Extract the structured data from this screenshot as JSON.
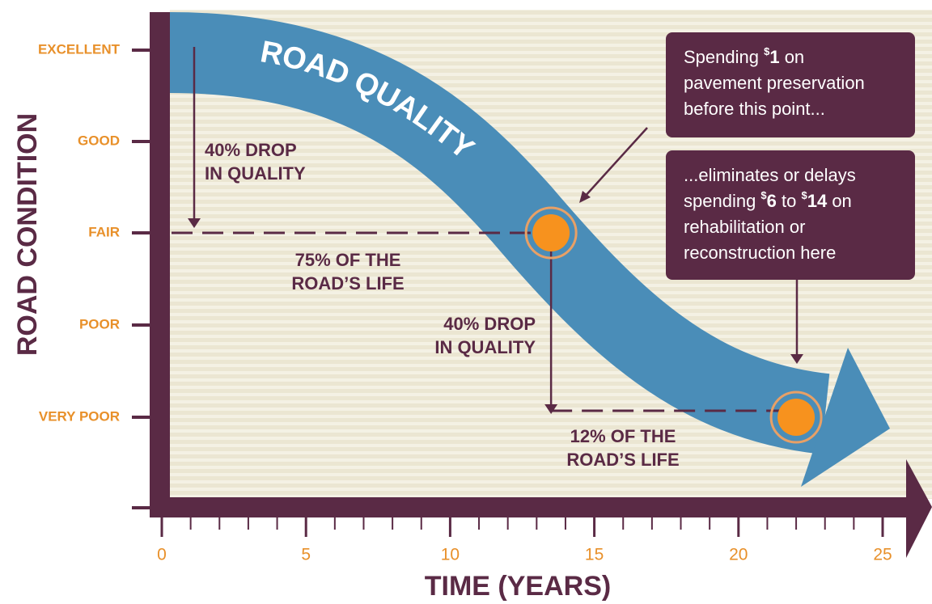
{
  "chart_data": {
    "type": "line",
    "title": "ROAD QUALITY",
    "xlabel": "TIME (YEARS)",
    "ylabel": "ROAD CONDITION",
    "categories": [
      "EXCELLENT",
      "GOOD",
      "FAIR",
      "POOR",
      "VERY POOR"
    ],
    "xlim": [
      0,
      25
    ],
    "xticks": [
      0,
      5,
      10,
      15,
      20,
      25
    ],
    "xminorticks": [
      1,
      2,
      3,
      4,
      6,
      7,
      8,
      9,
      11,
      12,
      13,
      14,
      16,
      17,
      18,
      19,
      21,
      22,
      23,
      24
    ],
    "series": [
      {
        "color": "#f7921e",
        "x": [
          13.5,
          22
        ],
        "values": [
          "FAIR",
          "VERY POOR"
        ]
      }
    ],
    "band_color": "#4a8db8",
    "annotations": [
      {
        "lines": [
          "40% DROP",
          "IN QUALITY"
        ]
      },
      {
        "lines": [
          "75% OF THE",
          "ROAD’S LIFE"
        ]
      },
      {
        "lines": [
          "40% DROP",
          "IN QUALITY"
        ]
      },
      {
        "lines": [
          "12% OF THE",
          "ROAD’S LIFE"
        ]
      }
    ],
    "callouts": [
      {
        "lines": [
          [
            {
              "text": "Spending "
            },
            {
              "text": "$",
              "sup": true,
              "bold": true
            },
            {
              "text": "1",
              "bold": true
            },
            {
              "text": " on"
            }
          ],
          [
            {
              "text": "pavement preservation"
            }
          ],
          [
            {
              "text": "before this point..."
            }
          ]
        ]
      },
      {
        "lines": [
          [
            {
              "text": "...eliminates or delays"
            }
          ],
          [
            {
              "text": "spending "
            },
            {
              "text": "$",
              "sup": true,
              "bold": true
            },
            {
              "text": "6",
              "bold": true
            },
            {
              "text": " to "
            },
            {
              "text": "$",
              "sup": true,
              "bold": true
            },
            {
              "text": "14",
              "bold": true
            },
            {
              "text": " on"
            }
          ],
          [
            {
              "text": "rehabilitation or"
            }
          ],
          [
            {
              "text": "reconstruction here"
            }
          ]
        ]
      }
    ]
  }
}
